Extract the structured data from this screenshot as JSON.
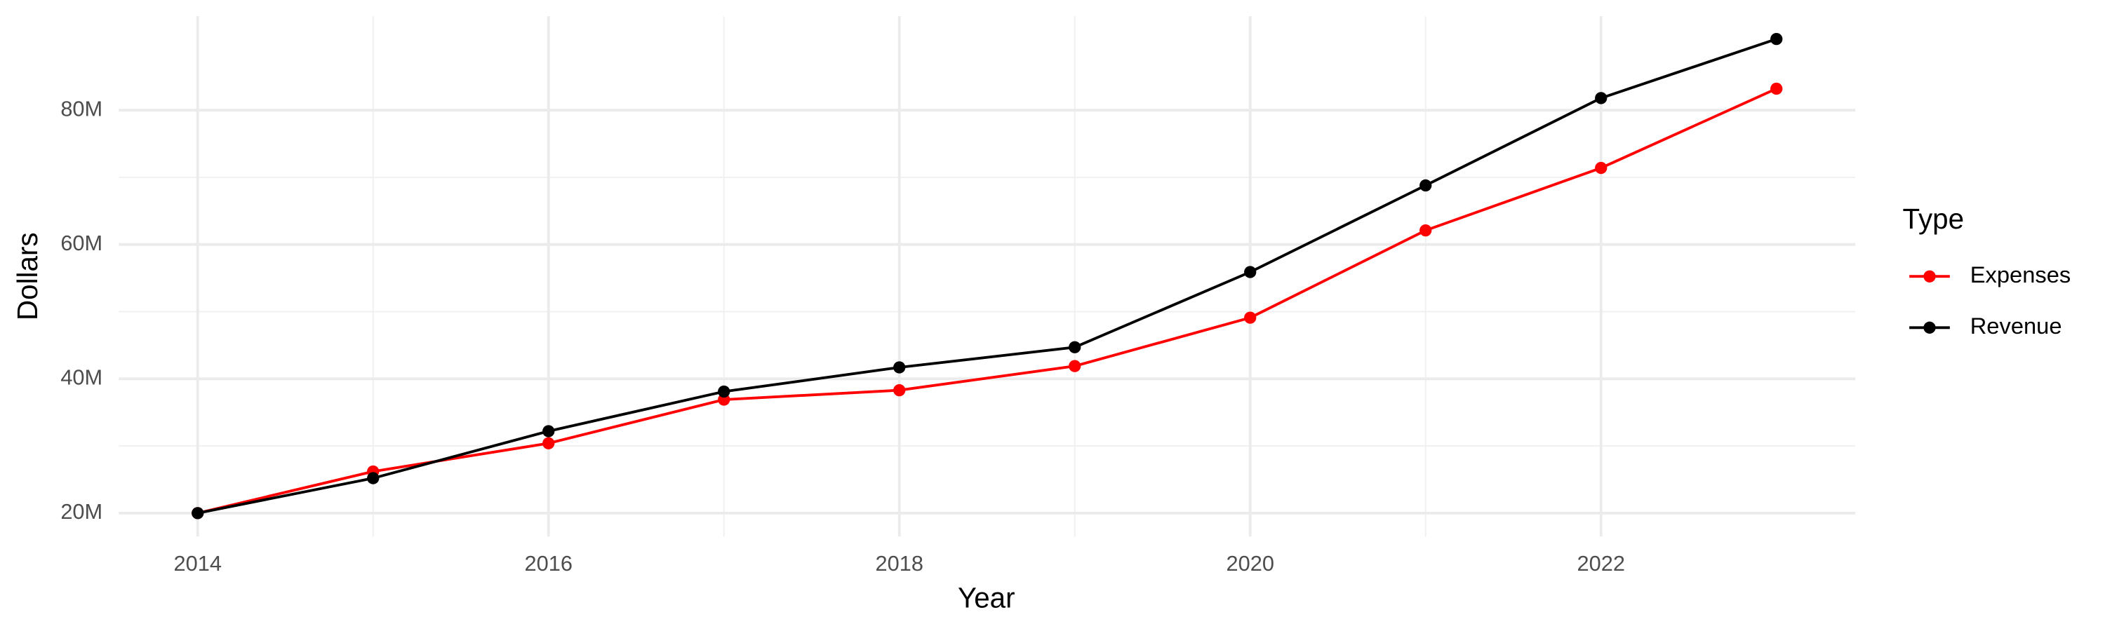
{
  "chart_data": {
    "type": "line",
    "x_label": "Year",
    "y_label": "Dollars",
    "legend_title": "Type",
    "legend_position": "right",
    "grid": true,
    "x": [
      2014,
      2015,
      2016,
      2017,
      2018,
      2019,
      2020,
      2021,
      2022,
      2023
    ],
    "series": [
      {
        "name": "Expenses",
        "color": "#ff0000",
        "values": [
          20000000,
          26200000,
          30400000,
          36900000,
          38300000,
          41900000,
          49100000,
          62100000,
          71400000,
          83200000
        ]
      },
      {
        "name": "Revenue",
        "color": "#000000",
        "values": [
          20000000,
          25200000,
          32200000,
          38100000,
          41700000,
          44700000,
          55900000,
          68800000,
          81800000,
          90600000
        ]
      }
    ],
    "xlim": [
      2013.55,
      2023.45
    ],
    "xticks": [
      2014,
      2016,
      2018,
      2020,
      2022
    ],
    "ylim": [
      16500000,
      94000000
    ],
    "yticks": [
      {
        "value": 20000000,
        "label": "20M"
      },
      {
        "value": 40000000,
        "label": "40M"
      },
      {
        "value": 60000000,
        "label": "60M"
      },
      {
        "value": 80000000,
        "label": "80M"
      }
    ]
  }
}
